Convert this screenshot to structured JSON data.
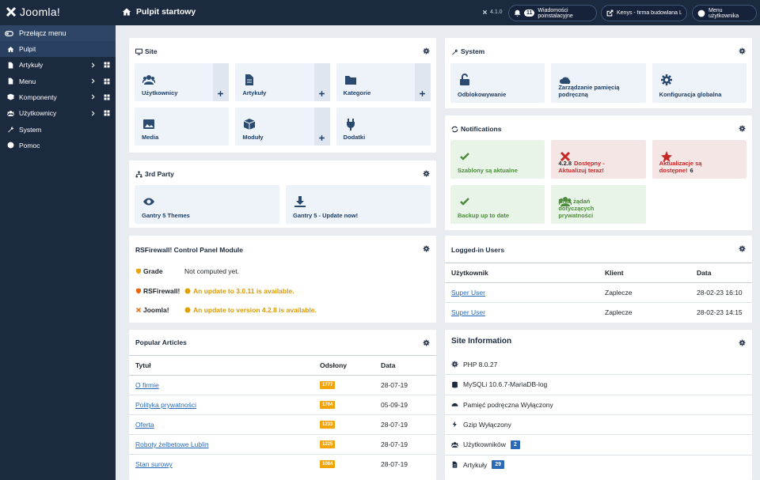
{
  "header": {
    "logo": "Joomla!",
    "title": "Pulpit startowy",
    "version": "4.1.0",
    "messages_count": 11,
    "messages": "Wiadomości poinstalacyjne",
    "site_link": "Kenys - firma budowlana Lubl...",
    "user_menu": "Menu użytkownika"
  },
  "sidebar": {
    "toggle": "Przełącz menu",
    "items": [
      "Pulpit",
      "Artykuły",
      "Menu",
      "Komponenty",
      "Użytkownicy",
      "System",
      "Pomoc"
    ]
  },
  "site": {
    "title": "Site",
    "tiles": [
      "Użytkownicy",
      "Artykuły",
      "Kategorie",
      "Media",
      "Moduły",
      "Dodatki"
    ]
  },
  "third_party": {
    "title": "3rd Party",
    "tiles": [
      "Gantry 5 Themes",
      "Gantry 5 - Update now!"
    ]
  },
  "rsfirewall": {
    "title": "RSFirewall! Control Panel Module",
    "rows": [
      [
        "Grade",
        "Not computed yet."
      ],
      [
        "RSFirewall!",
        "An update to 3.0.11 is available."
      ],
      [
        "Joomla!",
        "An update to version 4.2.8 is available."
      ]
    ]
  },
  "popular": {
    "title": "Popular Articles",
    "columns": [
      "Tytuł",
      "Odsłony",
      "Data"
    ],
    "rows": [
      [
        "O firmie",
        1777,
        "28-07-19"
      ],
      [
        "Polityka prywatności",
        1704,
        "05-09-19"
      ],
      [
        "Oferta",
        1233,
        "28-07-19"
      ],
      [
        "Roboty żelbetowe Lublin",
        1225,
        "28-07-19"
      ],
      [
        "Stan surowy",
        1084,
        "28-07-19"
      ]
    ]
  },
  "system": {
    "title": "System",
    "tiles": [
      "Odblokowywanie",
      "Zarządzanie pamięcią podręczną",
      "Konfiguracja globalna"
    ]
  },
  "notifications": {
    "title": "Notifications",
    "tiles": [
      {
        "label": "Szablony są aktualne"
      },
      {
        "version": "4.2.8",
        "label": "Dostępny - Aktualizuj teraz!"
      },
      {
        "label": "Aktualizacje są dostępne!",
        "count": 6
      },
      {
        "label": "Backup up to date"
      },
      {
        "label": "Brak żądań dotyczących prywatności"
      }
    ]
  },
  "logged": {
    "title": "Logged-in Users",
    "columns": [
      "Użytkownik",
      "Klient",
      "Data"
    ],
    "rows": [
      [
        "Super User",
        "Zaplecze",
        "28-02-23 16:10"
      ],
      [
        "Super User",
        "Zaplecze",
        "28-02-23 14:15"
      ]
    ]
  },
  "info": {
    "title": "Site Information",
    "items": [
      {
        "label": "PHP 8.0.27"
      },
      {
        "label": "MySQLi 10.6.7-MariaDB-log"
      },
      {
        "label": "Pamięć podręczna Wyłączony"
      },
      {
        "label": "Gzip Wyłączony"
      },
      {
        "label": "Użytkowników",
        "badge": 2
      },
      {
        "label": "Artykuły",
        "badge": 29
      }
    ]
  }
}
